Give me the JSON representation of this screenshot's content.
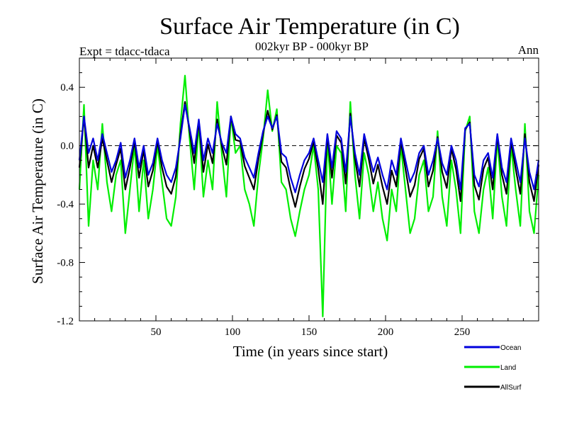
{
  "chart_data": {
    "type": "line",
    "title": "Surface Air Temperature (in C)",
    "subtitle": "002kyr BP - 000kyr BP",
    "left_label": "Expt = tdacc-tdaca",
    "right_label": "Ann",
    "xlabel": "Time (in years since start)",
    "ylabel": "Surface Air Temperature (in C)",
    "xlim": [
      0,
      300
    ],
    "ylim": [
      -1.2,
      0.6
    ],
    "xticks": [
      50,
      100,
      150,
      200,
      250
    ],
    "yticks": [
      0.4,
      0.0,
      -0.4,
      -0.8,
      -1.2
    ],
    "ytick_labels": [
      "0.4",
      "0.0",
      "-0.4",
      "-0.8",
      "-1.2"
    ],
    "reference_line": 0.0,
    "legend_position": "bottom-right",
    "series": [
      {
        "name": "Ocean",
        "color": "#0000dd",
        "x": [
          0,
          3,
          6,
          9,
          12,
          15,
          18,
          21,
          24,
          27,
          30,
          33,
          36,
          39,
          42,
          45,
          48,
          51,
          54,
          57,
          60,
          63,
          66,
          69,
          72,
          75,
          78,
          81,
          84,
          87,
          90,
          93,
          96,
          99,
          102,
          105,
          108,
          111,
          114,
          117,
          120,
          123,
          126,
          129,
          132,
          135,
          138,
          141,
          144,
          147,
          150,
          153,
          156,
          159,
          162,
          165,
          168,
          171,
          174,
          177,
          180,
          183,
          186,
          189,
          192,
          195,
          198,
          201,
          204,
          207,
          210,
          213,
          216,
          219,
          222,
          225,
          228,
          231,
          234,
          237,
          240,
          243,
          246,
          249,
          252,
          255,
          258,
          261,
          264,
          267,
          270,
          273,
          276,
          279,
          282,
          285,
          288,
          291,
          294,
          297,
          300
        ],
        "values": [
          -0.1,
          0.2,
          -0.05,
          0.05,
          -0.1,
          0.08,
          -0.05,
          -0.18,
          -0.1,
          0.02,
          -0.22,
          -0.1,
          0.05,
          -0.15,
          0.0,
          -0.2,
          -0.12,
          0.05,
          -0.1,
          -0.2,
          -0.25,
          -0.15,
          0.05,
          0.28,
          0.12,
          -0.05,
          0.18,
          -0.1,
          0.05,
          -0.05,
          0.15,
          0.02,
          -0.05,
          0.2,
          0.08,
          0.05,
          -0.08,
          -0.15,
          -0.22,
          -0.05,
          0.1,
          0.2,
          0.12,
          0.2,
          -0.05,
          -0.08,
          -0.22,
          -0.32,
          -0.2,
          -0.1,
          -0.05,
          0.05,
          -0.1,
          -0.25,
          0.08,
          -0.15,
          0.1,
          0.05,
          -0.18,
          0.2,
          -0.05,
          -0.2,
          0.08,
          -0.05,
          -0.18,
          -0.08,
          -0.2,
          -0.3,
          -0.1,
          -0.2,
          0.05,
          -0.1,
          -0.25,
          -0.18,
          -0.05,
          0.0,
          -0.2,
          -0.1,
          0.05,
          -0.12,
          -0.2,
          0.0,
          -0.1,
          -0.3,
          0.12,
          0.15,
          -0.2,
          -0.28,
          -0.1,
          -0.05,
          -0.22,
          0.08,
          -0.15,
          -0.25,
          0.05,
          -0.1,
          -0.25,
          0.05,
          -0.18,
          -0.3,
          -0.1
        ]
      },
      {
        "name": "Land",
        "color": "#00ee00",
        "x": [
          0,
          3,
          6,
          9,
          12,
          15,
          18,
          21,
          24,
          27,
          30,
          33,
          36,
          39,
          42,
          45,
          48,
          51,
          54,
          57,
          60,
          63,
          66,
          69,
          72,
          75,
          78,
          81,
          84,
          87,
          90,
          93,
          96,
          99,
          102,
          105,
          108,
          111,
          114,
          117,
          120,
          123,
          126,
          129,
          132,
          135,
          138,
          141,
          144,
          147,
          150,
          153,
          156,
          159,
          162,
          165,
          168,
          171,
          174,
          177,
          180,
          183,
          186,
          189,
          192,
          195,
          198,
          201,
          204,
          207,
          210,
          213,
          216,
          219,
          222,
          225,
          228,
          231,
          234,
          237,
          240,
          243,
          246,
          249,
          252,
          255,
          258,
          261,
          264,
          267,
          270,
          273,
          276,
          279,
          282,
          285,
          288,
          291,
          294,
          297,
          300
        ],
        "values": [
          -0.3,
          0.28,
          -0.55,
          -0.1,
          -0.3,
          0.15,
          -0.25,
          -0.45,
          -0.2,
          -0.1,
          -0.6,
          -0.3,
          0.0,
          -0.45,
          -0.1,
          -0.5,
          -0.3,
          0.0,
          -0.25,
          -0.5,
          -0.55,
          -0.35,
          0.15,
          0.48,
          0.05,
          -0.3,
          0.15,
          -0.35,
          -0.1,
          -0.3,
          0.3,
          -0.05,
          -0.35,
          0.2,
          -0.05,
          0.0,
          -0.3,
          -0.4,
          -0.55,
          -0.2,
          0.05,
          0.38,
          0.1,
          0.25,
          -0.25,
          -0.3,
          -0.5,
          -0.62,
          -0.45,
          -0.3,
          -0.2,
          0.0,
          -0.3,
          -1.17,
          0.05,
          -0.4,
          0.0,
          -0.05,
          -0.45,
          0.3,
          -0.2,
          -0.5,
          -0.05,
          -0.2,
          -0.45,
          -0.25,
          -0.5,
          -0.65,
          -0.3,
          -0.45,
          0.0,
          -0.3,
          -0.6,
          -0.5,
          -0.2,
          -0.1,
          -0.45,
          -0.35,
          0.1,
          -0.35,
          -0.55,
          -0.1,
          -0.3,
          -0.6,
          0.1,
          0.2,
          -0.45,
          -0.6,
          -0.3,
          -0.15,
          -0.5,
          0.05,
          -0.35,
          -0.55,
          0.0,
          -0.3,
          -0.55,
          0.15,
          -0.45,
          -0.6,
          -0.2
        ]
      },
      {
        "name": "AllSurf",
        "color": "#000000",
        "x": [
          0,
          3,
          6,
          9,
          12,
          15,
          18,
          21,
          24,
          27,
          30,
          33,
          36,
          39,
          42,
          45,
          48,
          51,
          54,
          57,
          60,
          63,
          66,
          69,
          72,
          75,
          78,
          81,
          84,
          87,
          90,
          93,
          96,
          99,
          102,
          105,
          108,
          111,
          114,
          117,
          120,
          123,
          126,
          129,
          132,
          135,
          138,
          141,
          144,
          147,
          150,
          153,
          156,
          159,
          162,
          165,
          168,
          171,
          174,
          177,
          180,
          183,
          186,
          189,
          192,
          195,
          198,
          201,
          204,
          207,
          210,
          213,
          216,
          219,
          222,
          225,
          228,
          231,
          234,
          237,
          240,
          243,
          246,
          249,
          252,
          255,
          258,
          261,
          264,
          267,
          270,
          273,
          276,
          279,
          282,
          285,
          288,
          291,
          294,
          297,
          300
        ],
        "values": [
          -0.15,
          0.2,
          -0.15,
          0.0,
          -0.15,
          0.05,
          -0.1,
          -0.25,
          -0.13,
          -0.02,
          -0.3,
          -0.15,
          0.03,
          -0.22,
          -0.03,
          -0.28,
          -0.17,
          0.03,
          -0.15,
          -0.28,
          -0.33,
          -0.21,
          0.08,
          0.3,
          0.1,
          -0.12,
          0.17,
          -0.18,
          0.01,
          -0.12,
          0.18,
          0.0,
          -0.13,
          0.2,
          0.04,
          0.03,
          -0.14,
          -0.22,
          -0.3,
          -0.09,
          0.08,
          0.24,
          0.11,
          0.21,
          -0.11,
          -0.15,
          -0.3,
          -0.42,
          -0.28,
          -0.16,
          -0.09,
          0.03,
          -0.16,
          -0.4,
          0.07,
          -0.22,
          0.07,
          0.02,
          -0.26,
          0.22,
          -0.09,
          -0.28,
          0.05,
          -0.09,
          -0.26,
          -0.13,
          -0.28,
          -0.4,
          -0.17,
          -0.28,
          0.03,
          -0.16,
          -0.35,
          -0.27,
          -0.09,
          -0.02,
          -0.28,
          -0.17,
          0.06,
          -0.18,
          -0.29,
          -0.02,
          -0.16,
          -0.38,
          0.11,
          0.16,
          -0.27,
          -0.37,
          -0.16,
          -0.08,
          -0.3,
          0.07,
          -0.2,
          -0.33,
          0.03,
          -0.16,
          -0.33,
          0.08,
          -0.25,
          -0.38,
          -0.13
        ]
      }
    ]
  }
}
